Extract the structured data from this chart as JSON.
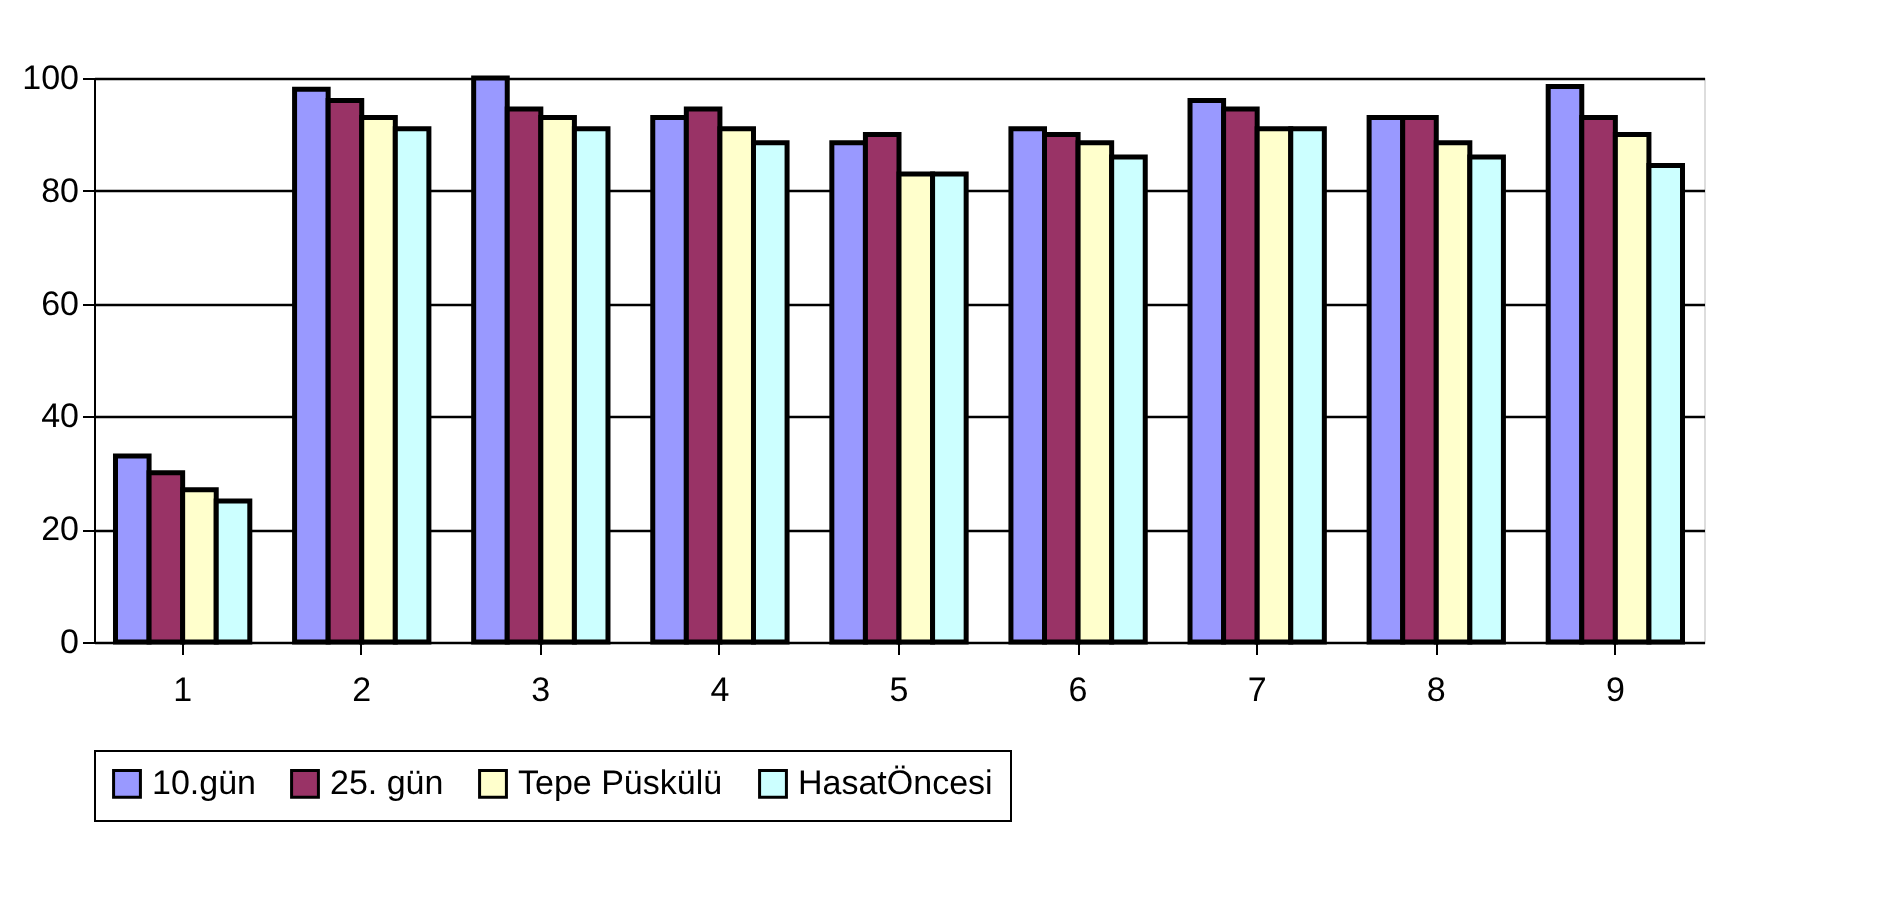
{
  "chart_data": {
    "type": "bar",
    "categories": [
      "1",
      "2",
      "3",
      "4",
      "5",
      "6",
      "7",
      "8",
      "9"
    ],
    "series": [
      {
        "name": "10.gün",
        "color": "#9999ff",
        "values": [
          33,
          98,
          100,
          93,
          88.5,
          91,
          96,
          93,
          98.5
        ]
      },
      {
        "name": "25. gün",
        "color": "#993366",
        "values": [
          30,
          96,
          94.5,
          94.5,
          90,
          90,
          94.5,
          93,
          93
        ]
      },
      {
        "name": "Tepe Püskülü",
        "color": "#ffffcc",
        "values": [
          27,
          93,
          93,
          91,
          83,
          88.5,
          91,
          88.5,
          90
        ]
      },
      {
        "name": "HasatÖncesi",
        "color": "#ccffff",
        "values": [
          25,
          91,
          91,
          88.5,
          83,
          86,
          91,
          86,
          84.5
        ]
      }
    ],
    "ylim": [
      0,
      100
    ],
    "yticks": [
      0,
      20,
      40,
      60,
      80,
      100
    ],
    "grid": "y",
    "legend": "bottom"
  }
}
